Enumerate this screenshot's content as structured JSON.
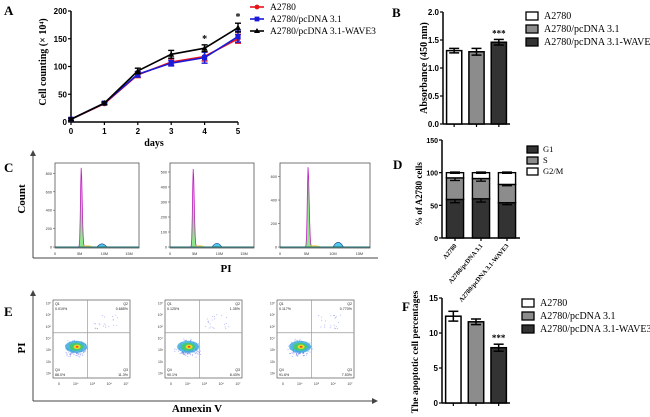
{
  "figure": {
    "panel_labels": [
      "A",
      "B",
      "C",
      "D",
      "E",
      "F"
    ]
  },
  "chart_data": [
    {
      "panel": "A",
      "type": "line",
      "title": "",
      "xlabel": "days",
      "ylabel": "Cell counting (× 10⁴)",
      "x": [
        0,
        1,
        2,
        3,
        4,
        5
      ],
      "xticks": [
        "0",
        "1",
        "2",
        "3",
        "4",
        "5"
      ],
      "yticks": [
        "0",
        "50",
        "100",
        "150",
        "200"
      ],
      "ylim": [
        0,
        200
      ],
      "xlim": [
        0,
        5
      ],
      "legend_position": "top-right-outside",
      "series": [
        {
          "name": "A2780",
          "color": "#e8121a",
          "marker": "circle",
          "values": [
            5,
            33,
            85,
            108,
            118,
            150
          ],
          "errors": [
            2,
            2,
            5,
            6,
            8,
            8
          ]
        },
        {
          "name": "A2780/pcDNA 3.1",
          "color": "#1a1ad8",
          "marker": "square",
          "values": [
            5,
            34,
            86,
            106,
            116,
            154
          ],
          "errors": [
            2,
            2,
            5,
            5,
            10,
            10
          ]
        },
        {
          "name": "A2780/pcDNA 3.1-WAVE3",
          "color": "#000000",
          "marker": "triangle",
          "values": [
            5,
            34,
            92,
            122,
            133,
            170
          ],
          "errors": [
            2,
            2,
            5,
            7,
            6,
            8
          ]
        }
      ],
      "annotations": [
        {
          "x": 4,
          "text": "*"
        },
        {
          "x": 5,
          "text": "*"
        }
      ]
    },
    {
      "panel": "B",
      "type": "bar",
      "title": "",
      "xlabel": "",
      "ylabel": "Absorbance (450 nm)",
      "categories": [
        "A2780",
        "A2780/pcDNA 3.1",
        "A2780/pcDNA 3.1-WAVE3"
      ],
      "values": [
        1.31,
        1.29,
        1.46
      ],
      "errors": [
        0.04,
        0.06,
        0.05
      ],
      "colors": [
        "#ffffff",
        "#8c8c8c",
        "#333333"
      ],
      "yticks": [
        "0.0",
        "0.5",
        "1.0",
        "1.5",
        "2.0"
      ],
      "ylim": [
        0,
        2.0
      ],
      "annotations": [
        {
          "category": 2,
          "text": "***"
        }
      ],
      "legend_position": "right"
    },
    {
      "panel": "C",
      "type": "area",
      "title": "",
      "xlabel": "PI",
      "ylabel": "Count",
      "subplots": [
        {
          "yticks": [
            "0",
            "200",
            "400",
            "600",
            "800"
          ],
          "ymax": 880,
          "peak_g1": 860,
          "peak_g2": 35
        },
        {
          "yticks": [
            "0",
            "100",
            "200",
            "300",
            "400",
            "500"
          ],
          "ymax": 540,
          "peak_g1": 520,
          "peak_g2": 25
        },
        {
          "yticks": [
            "0",
            "200",
            "400",
            "600"
          ],
          "ymax": 690,
          "peak_g1": 680,
          "peak_g2": 40
        }
      ],
      "xticks": [
        "0",
        "5M",
        "10M",
        "15M"
      ],
      "xlim": [
        0,
        17
      ]
    },
    {
      "panel": "D",
      "type": "bar",
      "stacked": true,
      "title": "",
      "xlabel": "",
      "ylabel": "% of A2780 cells",
      "categories": [
        "A2780",
        "A2780/pcDNA 3.1",
        "A2780/pcDNA 3.1-WAVE3"
      ],
      "series": [
        {
          "name": "G1",
          "color": "#333333",
          "values": [
            59,
            60,
            54
          ],
          "errors": [
            5,
            5,
            3
          ]
        },
        {
          "name": "S",
          "color": "#8c8c8c",
          "values": [
            33,
            31,
            28
          ],
          "errors": [
            4,
            4,
            2
          ]
        },
        {
          "name": "G2/M",
          "color": "#ffffff",
          "values": [
            8,
            9,
            18
          ],
          "errors": [
            1,
            1,
            1
          ]
        }
      ],
      "yticks": [
        "0",
        "50",
        "100",
        "150"
      ],
      "ylim": [
        0,
        150
      ],
      "legend_position": "top-right"
    },
    {
      "panel": "E",
      "type": "scatter",
      "title": "",
      "xlabel": "Annexin V",
      "ylabel": "PI",
      "xticks": [
        "0",
        "10⁴",
        "10⁵",
        "10⁶",
        "10⁷"
      ],
      "yticks": [
        "10¹",
        "10²",
        "10³",
        "10⁴",
        "10⁵",
        "10⁶",
        "10⁷"
      ],
      "subplots": [
        {
          "Q1": "0.019%",
          "Q2": "0.685%",
          "Q3": "11.3%",
          "Q4": "88.0%"
        },
        {
          "Q1": "0.125%",
          "Q2": "1.35%",
          "Q3": "8.43%",
          "Q4": "90.1%"
        },
        {
          "Q1": "0.117%",
          "Q2": "0.770%",
          "Q3": "7.53%",
          "Q4": "91.6%"
        }
      ],
      "quadrant_names": [
        "Q1",
        "Q2",
        "Q3",
        "Q4"
      ]
    },
    {
      "panel": "F",
      "type": "bar",
      "title": "",
      "xlabel": "",
      "ylabel": "The apoptotic cell percentages",
      "categories": [
        "A2780",
        "A2780/pcDNA 3.1",
        "A2780/pcDNA 3.1-WAVE3"
      ],
      "values": [
        12.4,
        11.6,
        7.9
      ],
      "errors": [
        0.7,
        0.4,
        0.5
      ],
      "colors": [
        "#ffffff",
        "#8c8c8c",
        "#333333"
      ],
      "yticks": [
        "0",
        "5",
        "10",
        "15"
      ],
      "ylim": [
        0,
        15
      ],
      "annotations": [
        {
          "category": 2,
          "text": "***"
        }
      ],
      "legend_position": "right"
    }
  ]
}
